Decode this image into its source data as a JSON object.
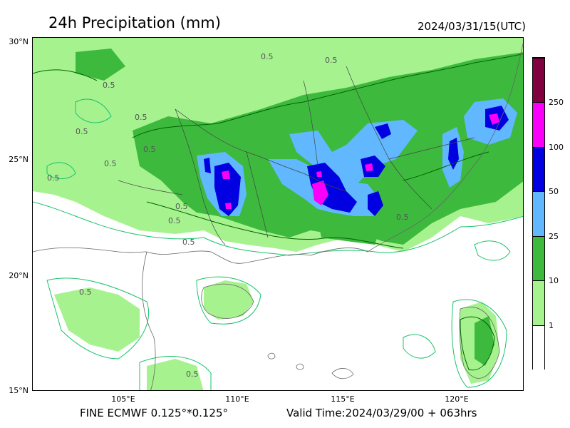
{
  "title": "24h Precipitation (mm)",
  "datetime": "2024/03/31/15(UTC)",
  "footer": {
    "model": "FINE ECMWF 0.125°*0.125°",
    "valid": "Valid Time:2024/03/29/00 + 063hrs"
  },
  "axes": {
    "lat": [
      "30°N",
      "25°N",
      "20°N",
      "15°N"
    ],
    "lon": [
      "105°E",
      "110°E",
      "115°E",
      "120°E"
    ]
  },
  "colorbar": {
    "levels": [
      "1",
      "10",
      "25",
      "50",
      "100",
      "250"
    ],
    "colors": [
      "#ffffff",
      "#a6f28f",
      "#3dba3d",
      "#61b8ff",
      "#0000e1",
      "#fa00fa",
      "#800040"
    ]
  },
  "contour_labels": [
    "0.5",
    "0.5",
    "0.5",
    "0.5",
    "0.5",
    "0.5",
    "0.5",
    "0.5",
    "0.5",
    "0.5",
    "0.5",
    "0.5",
    "0.5",
    "0.5"
  ],
  "colors": {
    "contour_light": "#19c36b",
    "contour_dark": "#006400",
    "coast": "#666666"
  }
}
